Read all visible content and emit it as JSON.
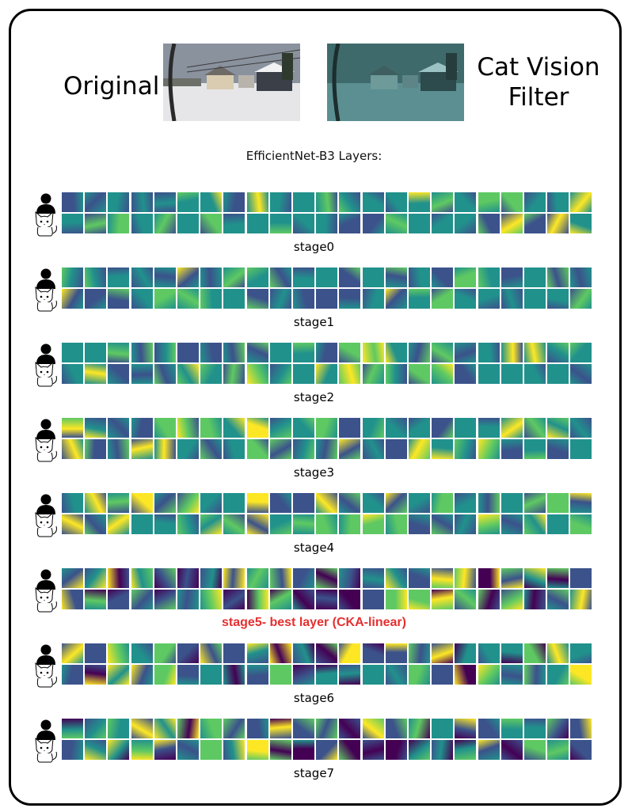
{
  "header": {
    "original_label": "Original",
    "filter_label_line1": "Cat Vision",
    "filter_label_line2": "Filter"
  },
  "subtitle": "EfficientNet-B3 Layers:",
  "rows": {
    "human_icon": "person-icon",
    "cat_icon": "cat-icon"
  },
  "stages": [
    {
      "label": "stage0",
      "highlight": false
    },
    {
      "label": "stage1",
      "highlight": false
    },
    {
      "label": "stage2",
      "highlight": false
    },
    {
      "label": "stage3",
      "highlight": false
    },
    {
      "label": "stage4",
      "highlight": false
    },
    {
      "label": "stage5- best layer (CKA-linear)",
      "highlight": true
    },
    {
      "label": "stage6",
      "highlight": false
    },
    {
      "label": "stage7",
      "highlight": false
    }
  ],
  "colors": {
    "highlight": "#e53030",
    "viridis": [
      "#440154",
      "#3b528b",
      "#21918c",
      "#5ec962",
      "#fde725"
    ]
  }
}
